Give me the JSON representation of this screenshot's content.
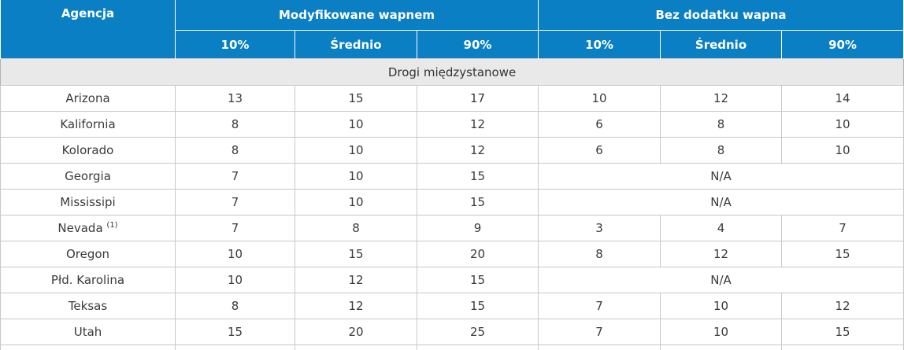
{
  "header": {
    "agency": "Agencja",
    "group_lime": "Modyfikowane wapnem",
    "group_nolime": "Bez dodatku wapna",
    "sub": [
      "10%",
      "Średnio",
      "90%",
      "10%",
      "Średnio",
      "90%"
    ]
  },
  "section_title": "Drogi międzystanowe",
  "rows": [
    {
      "agency": "Arizona",
      "sup": "",
      "lime": [
        "13",
        "15",
        "17"
      ],
      "nolime": [
        "10",
        "12",
        "14"
      ]
    },
    {
      "agency": "Kalifornia",
      "sup": "",
      "lime": [
        "8",
        "10",
        "12"
      ],
      "nolime": [
        "6",
        "8",
        "10"
      ]
    },
    {
      "agency": "Kolorado",
      "sup": "",
      "lime": [
        "8",
        "10",
        "12"
      ],
      "nolime": [
        "6",
        "8",
        "10"
      ]
    },
    {
      "agency": "Georgia",
      "sup": "",
      "lime": [
        "7",
        "10",
        "15"
      ],
      "nolime_merged": "N/A"
    },
    {
      "agency": "Mississipi",
      "sup": "",
      "lime": [
        "7",
        "10",
        "15"
      ],
      "nolime_merged": "N/A"
    },
    {
      "agency": "Nevada",
      "sup": "(1)",
      "lime": [
        "7",
        "8",
        "9"
      ],
      "nolime": [
        "3",
        "4",
        "7"
      ]
    },
    {
      "agency": "Oregon",
      "sup": "",
      "lime": [
        "10",
        "15",
        "20"
      ],
      "nolime": [
        "8",
        "12",
        "15"
      ]
    },
    {
      "agency": "Płd. Karolina",
      "sup": "",
      "lime": [
        "10",
        "12",
        "15"
      ],
      "nolime_merged": "N/A"
    },
    {
      "agency": "Teksas",
      "sup": "",
      "lime": [
        "8",
        "12",
        "15"
      ],
      "nolime": [
        "7",
        "10",
        "12"
      ]
    },
    {
      "agency": "Utah",
      "sup": "",
      "lime": [
        "15",
        "20",
        "25"
      ],
      "nolime": [
        "7",
        "10",
        "15"
      ]
    }
  ]
}
